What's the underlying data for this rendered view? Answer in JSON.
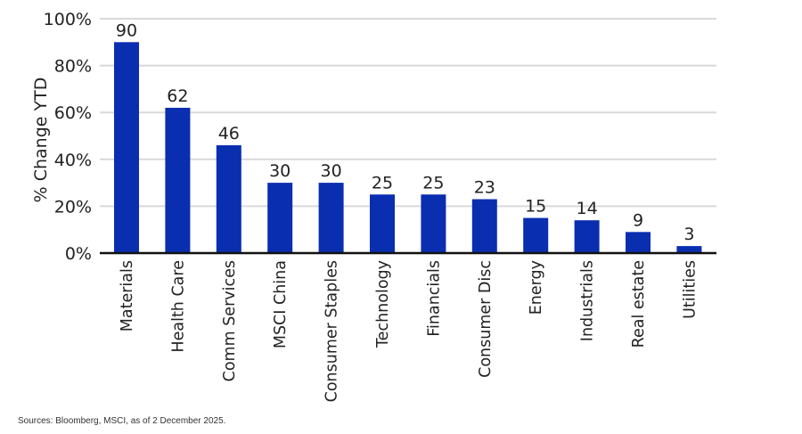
{
  "colors": {
    "bar": "#0a2eb0",
    "grid": "#d9d9d9",
    "baseline": "#111111",
    "text": "#222222"
  },
  "chart_data": {
    "type": "bar",
    "categories": [
      "Materials",
      "Health Care",
      "Comm Services",
      "MSCI China",
      "Consumer Staples",
      "Technology",
      "Financials",
      "Consumer Disc",
      "Energy",
      "Industrials",
      "Real estate",
      "Utilities"
    ],
    "values": [
      90,
      62,
      46,
      30,
      30,
      25,
      25,
      23,
      15,
      14,
      9,
      3
    ],
    "data_labels": [
      "90",
      "62",
      "46",
      "30",
      "30",
      "25",
      "25",
      "23",
      "15",
      "14",
      "9",
      "3"
    ],
    "title": "",
    "xlabel": "",
    "ylabel": "% Change YTD",
    "ylim": [
      0,
      100
    ],
    "yticks": [
      0,
      20,
      40,
      60,
      80,
      100
    ],
    "ytick_labels": [
      "0%",
      "20%",
      "40%",
      "60%",
      "80%",
      "100%"
    ],
    "grid": true,
    "legend": "none"
  },
  "footer": {
    "source": "Sources: Bloomberg, MSCI, as of 2 December 2025."
  }
}
